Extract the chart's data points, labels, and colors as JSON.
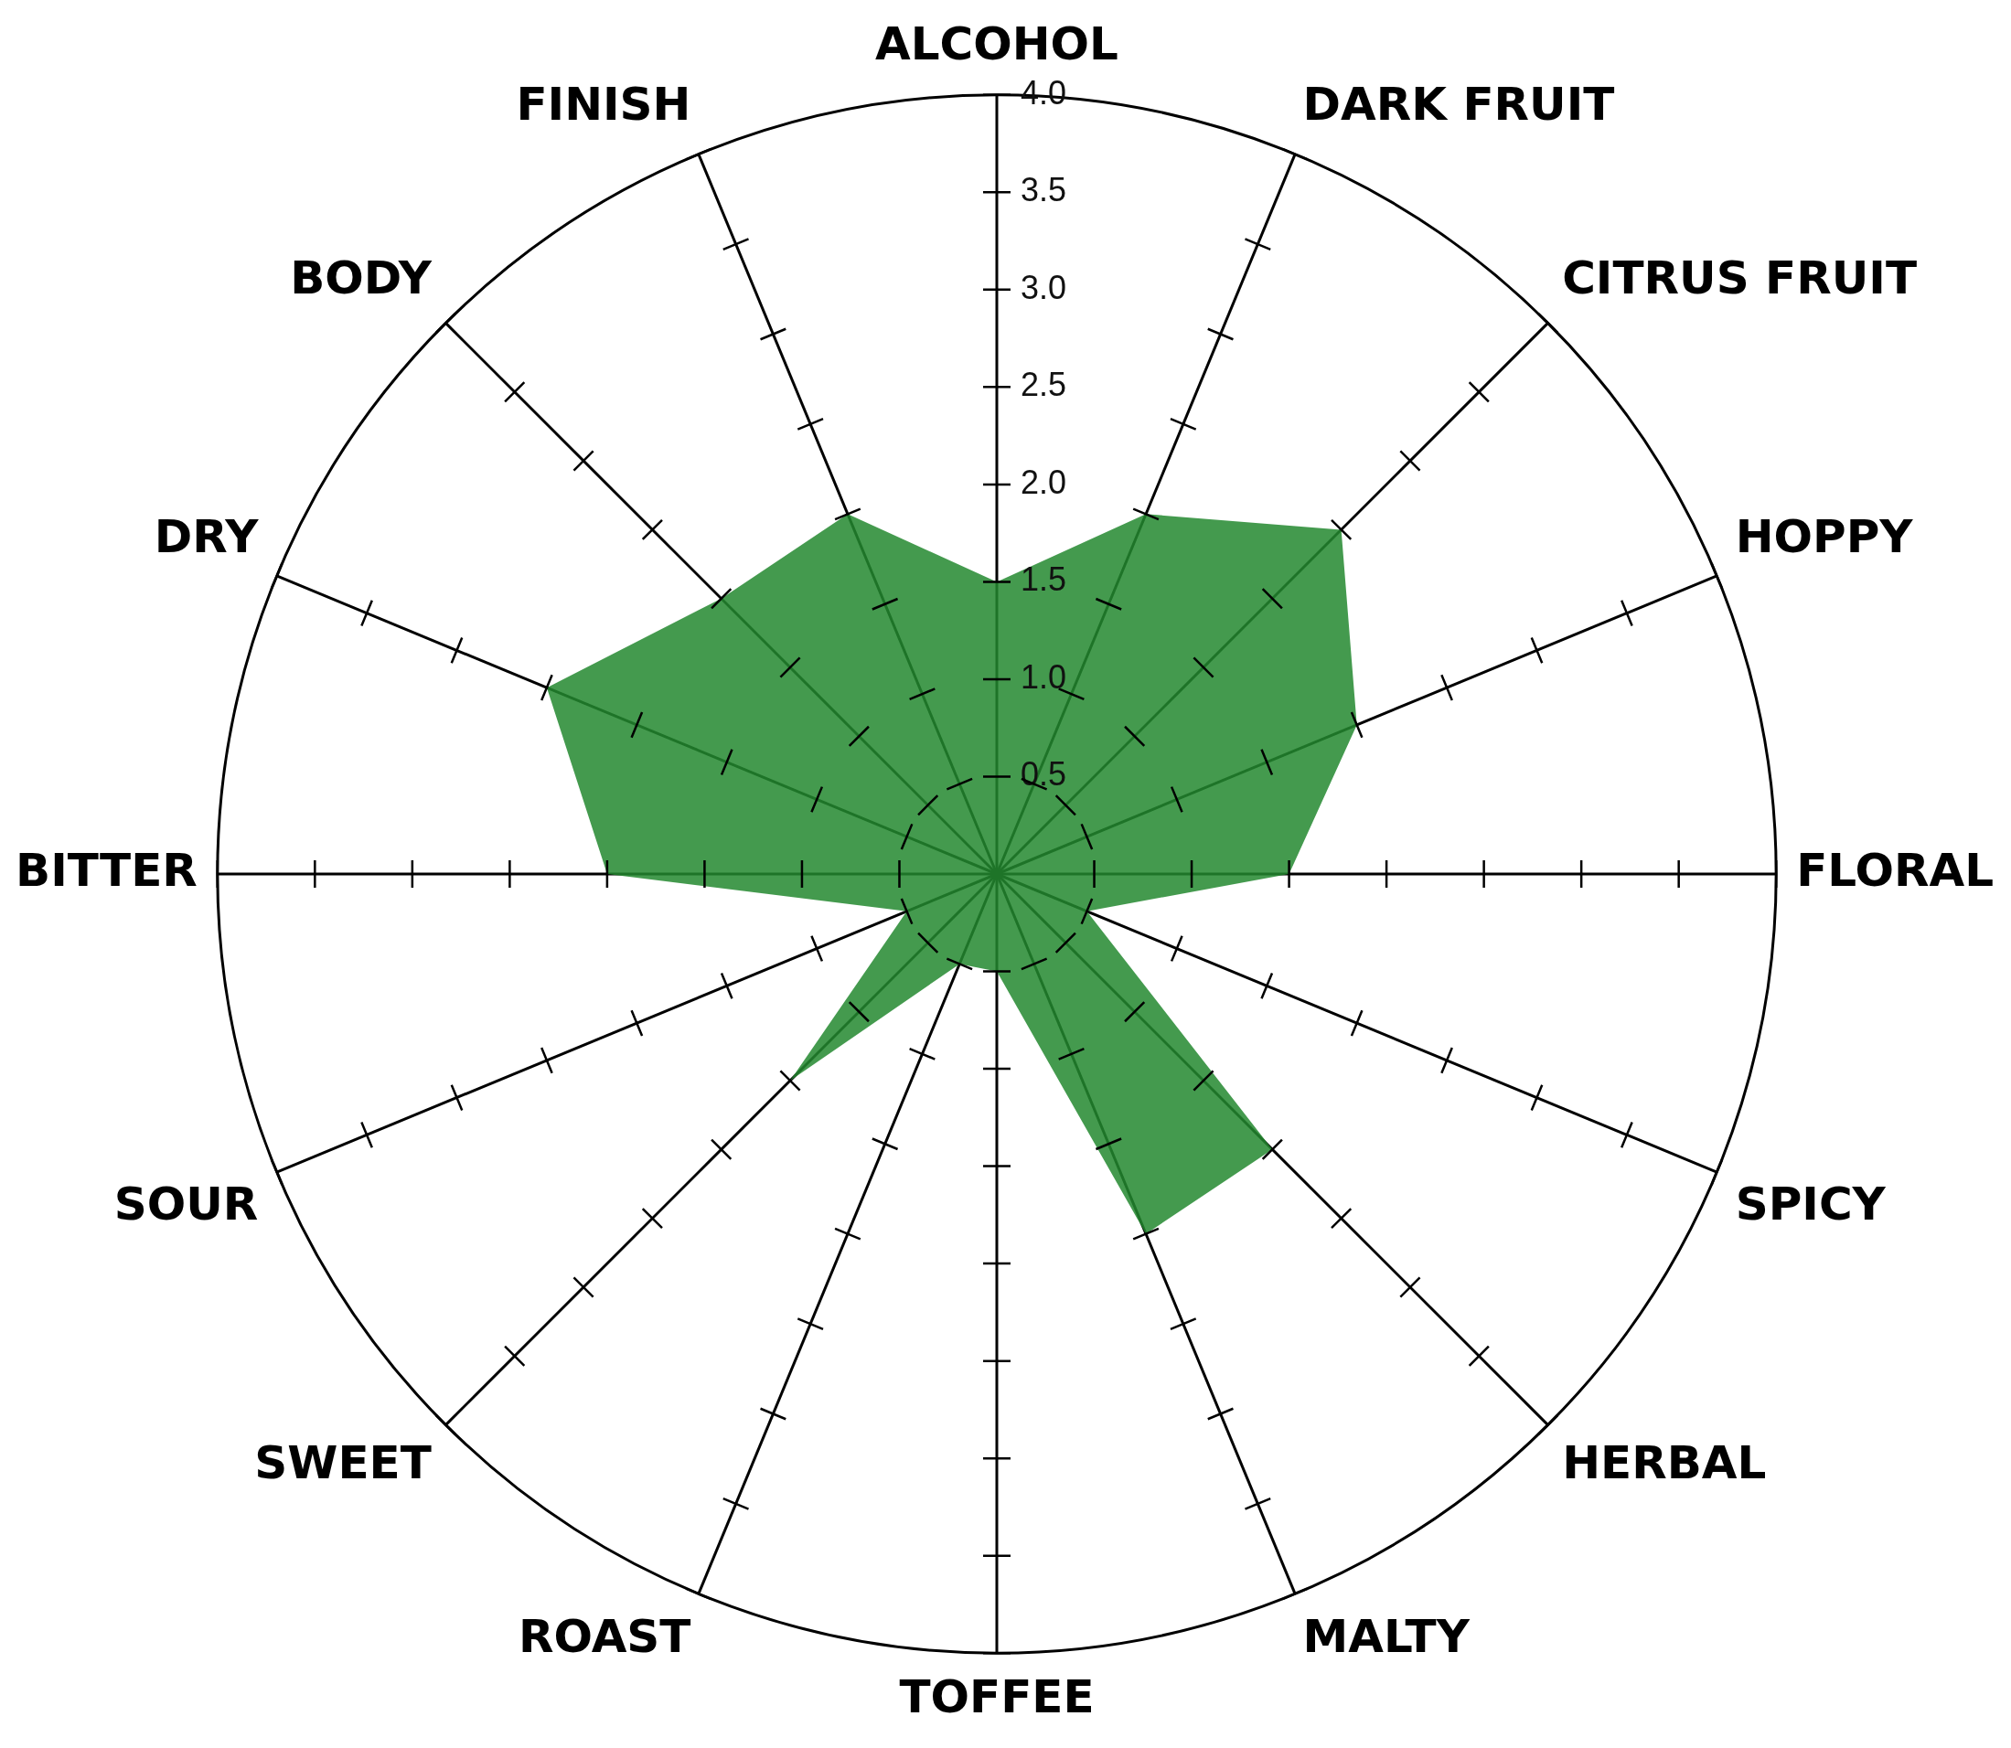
{
  "chart_data": {
    "type": "radar",
    "categories": [
      "ALCOHOL",
      "DARK FRUIT",
      "CITRUS FRUIT",
      "HOPPY",
      "FLORAL",
      "SPICY",
      "HERBAL",
      "MALTY",
      "TOFFEE",
      "ROAST",
      "SWEET",
      "SOUR",
      "BITTER",
      "DRY",
      "BODY",
      "FINISH"
    ],
    "series": [
      {
        "color": "#23882f",
        "values": [
          1.5,
          2.0,
          2.5,
          2.0,
          1.5,
          0.5,
          2.0,
          2.0,
          0.5,
          0.5,
          1.5,
          0.5,
          2.0,
          2.5,
          2.0,
          2.0
        ]
      }
    ],
    "ylim": [
      0,
      4
    ],
    "yticks": [
      0.5,
      {
        "value": 1,
        "label": "1.0"
      },
      1.5,
      {
        "value": 2,
        "label": "2.0"
      },
      2.5,
      {
        "value": 3,
        "label": "3.0"
      },
      3.5,
      {
        "value": 4,
        "label": "4.0"
      }
    ],
    "grid": true,
    "legend": false,
    "marker": "none"
  }
}
